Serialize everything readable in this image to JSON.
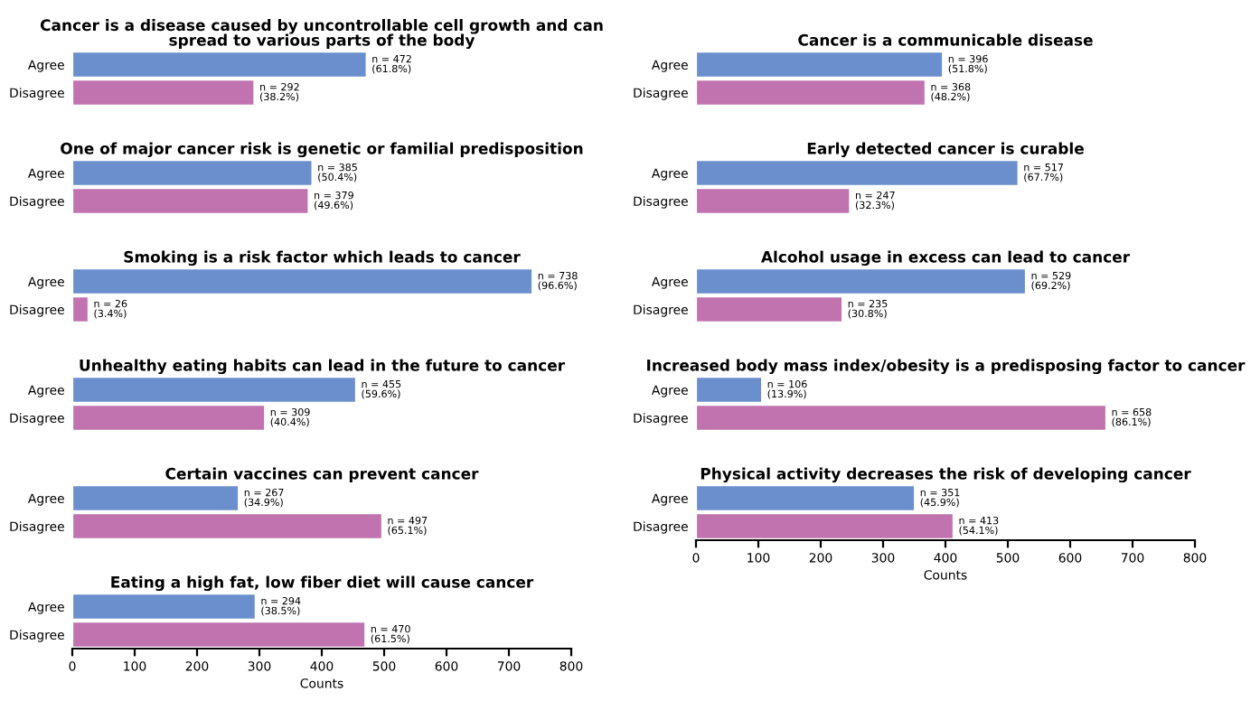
{
  "chart_data": [
    {
      "type": "bar",
      "orientation": "horizontal",
      "title": "Cancer is a disease caused by uncontrollable cell growth and can\nspread to various parts of the body",
      "categories": [
        "Agree",
        "Disagree"
      ],
      "values": [
        472,
        292
      ],
      "colors": [
        "#6a8fcc",
        "#c173b0"
      ],
      "value_labels": [
        "n = 472\n(61.8%)",
        "n = 292\n(38.2%)"
      ],
      "xlim": [
        0,
        800
      ],
      "tick_labels": "y"
    },
    {
      "type": "bar",
      "orientation": "horizontal",
      "title": "One of major cancer risk is genetic or familial predisposition",
      "categories": [
        "Agree",
        "Disagree"
      ],
      "values": [
        385,
        379
      ],
      "colors": [
        "#6a8fcc",
        "#c173b0"
      ],
      "value_labels": [
        "n = 385\n(50.4%)",
        "n = 379\n(49.6%)"
      ],
      "xlim": [
        0,
        800
      ],
      "tick_labels": "y"
    },
    {
      "type": "bar",
      "orientation": "horizontal",
      "title": "Smoking is a risk factor which leads to cancer",
      "categories": [
        "Agree",
        "Disagree"
      ],
      "values": [
        738,
        26
      ],
      "colors": [
        "#6a8fcc",
        "#c173b0"
      ],
      "value_labels": [
        "n = 738\n(96.6%)",
        "n = 26\n(3.4%)"
      ],
      "xlim": [
        0,
        800
      ],
      "tick_labels": "y"
    },
    {
      "type": "bar",
      "orientation": "horizontal",
      "title": "Unhealthy eating habits can lead in the future to cancer",
      "categories": [
        "Agree",
        "Disagree"
      ],
      "values": [
        455,
        309
      ],
      "colors": [
        "#6a8fcc",
        "#c173b0"
      ],
      "value_labels": [
        "n = 455\n(59.6%)",
        "n = 309\n(40.4%)"
      ],
      "xlim": [
        0,
        800
      ],
      "tick_labels": "y"
    },
    {
      "type": "bar",
      "orientation": "horizontal",
      "title": "Certain vaccines can prevent cancer",
      "categories": [
        "Agree",
        "Disagree"
      ],
      "values": [
        267,
        497
      ],
      "colors": [
        "#6a8fcc",
        "#c173b0"
      ],
      "value_labels": [
        "n = 267\n(34.9%)",
        "n = 497\n(65.1%)"
      ],
      "xlim": [
        0,
        800
      ],
      "tick_labels": "y"
    },
    {
      "type": "bar",
      "orientation": "horizontal",
      "title": "Eating a high fat, low fiber diet will cause cancer",
      "categories": [
        "Agree",
        "Disagree"
      ],
      "values": [
        294,
        470
      ],
      "colors": [
        "#6a8fcc",
        "#c173b0"
      ],
      "value_labels": [
        "n = 294\n(38.5%)",
        "n = 470\n(61.5%)"
      ],
      "xlim": [
        0,
        800
      ],
      "xticks": [
        0,
        100,
        200,
        300,
        400,
        500,
        600,
        700,
        800
      ],
      "xlabel": "Counts"
    },
    {
      "type": "bar",
      "orientation": "horizontal",
      "title": "Cancer is a communicable disease",
      "categories": [
        "Agree",
        "Disagree"
      ],
      "values": [
        396,
        368
      ],
      "colors": [
        "#6a8fcc",
        "#c173b0"
      ],
      "value_labels": [
        "n = 396\n(51.8%)",
        "n = 368\n(48.2%)"
      ],
      "xlim": [
        0,
        800
      ],
      "tick_labels": "y"
    },
    {
      "type": "bar",
      "orientation": "horizontal",
      "title": "Early detected cancer is curable",
      "categories": [
        "Agree",
        "Disagree"
      ],
      "values": [
        517,
        247
      ],
      "colors": [
        "#6a8fcc",
        "#c173b0"
      ],
      "value_labels": [
        "n = 517\n(67.7%)",
        "n = 247\n(32.3%)"
      ],
      "xlim": [
        0,
        800
      ],
      "tick_labels": "y"
    },
    {
      "type": "bar",
      "orientation": "horizontal",
      "title": "Alcohol usage in excess can lead to cancer",
      "categories": [
        "Agree",
        "Disagree"
      ],
      "values": [
        529,
        235
      ],
      "colors": [
        "#6a8fcc",
        "#c173b0"
      ],
      "value_labels": [
        "n = 529\n(69.2%)",
        "n = 235\n(30.8%)"
      ],
      "xlim": [
        0,
        800
      ],
      "tick_labels": "y"
    },
    {
      "type": "bar",
      "orientation": "horizontal",
      "title": "Increased body mass index/obesity is a predisposing factor to cancer",
      "categories": [
        "Agree",
        "Disagree"
      ],
      "values": [
        106,
        658
      ],
      "colors": [
        "#6a8fcc",
        "#c173b0"
      ],
      "value_labels": [
        "n = 106\n(13.9%)",
        "n = 658\n(86.1%)"
      ],
      "xlim": [
        0,
        800
      ],
      "tick_labels": "y"
    },
    {
      "type": "bar",
      "orientation": "horizontal",
      "title": "Physical activity decreases the risk of developing cancer",
      "categories": [
        "Agree",
        "Disagree"
      ],
      "values": [
        351,
        413
      ],
      "colors": [
        "#6a8fcc",
        "#c173b0"
      ],
      "value_labels": [
        "n = 351\n(45.9%)",
        "n = 413\n(54.1%)"
      ],
      "xlim": [
        0,
        800
      ],
      "xticks": [
        0,
        100,
        200,
        300,
        400,
        500,
        600,
        700,
        800
      ],
      "xlabel": "Counts"
    }
  ]
}
